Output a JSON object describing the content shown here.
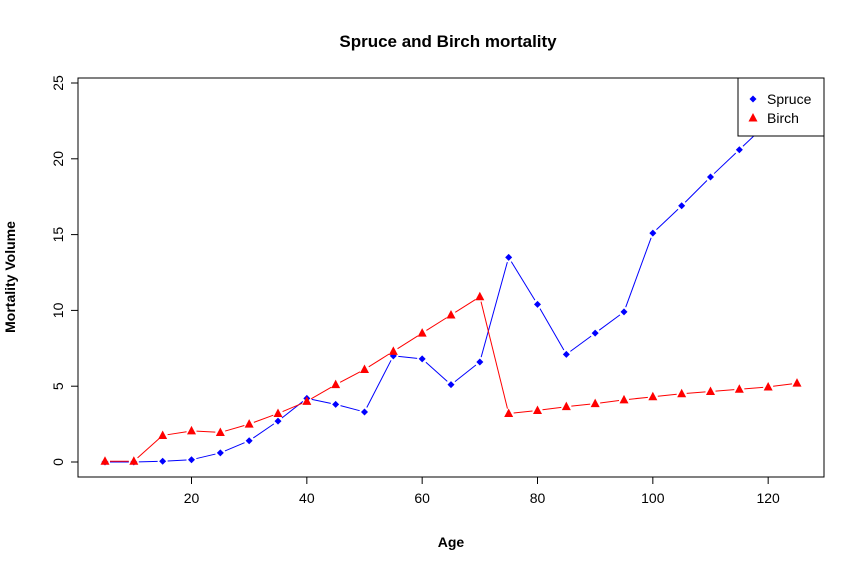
{
  "chart_data": {
    "type": "line",
    "title": "Spruce and Birch mortality",
    "xlabel": "Age",
    "ylabel": "Mortality Volume",
    "xlim": [
      5,
      125
    ],
    "ylim": [
      0,
      25
    ],
    "x_ticks": [
      20,
      40,
      60,
      80,
      100,
      120
    ],
    "y_ticks": [
      0,
      5,
      10,
      15,
      20,
      25
    ],
    "legend_position": "top-right",
    "x": [
      5,
      10,
      15,
      20,
      25,
      30,
      35,
      40,
      45,
      50,
      55,
      60,
      65,
      70,
      75,
      80,
      85,
      90,
      95,
      100,
      105,
      110,
      115,
      120,
      125
    ],
    "series": [
      {
        "name": "Spruce",
        "color": "#0000ff",
        "marker": "diamond",
        "values": [
          0,
          0,
          0.05,
          0.15,
          0.6,
          1.4,
          2.7,
          4.2,
          3.8,
          3.3,
          7.0,
          6.8,
          5.1,
          6.6,
          13.5,
          10.4,
          7.1,
          8.5,
          9.9,
          15.1,
          16.9,
          18.8,
          20.6,
          22.4,
          24.2
        ]
      },
      {
        "name": "Birch",
        "color": "#ff0000",
        "marker": "triangle",
        "values": [
          0.05,
          0.05,
          1.75,
          2.05,
          1.95,
          2.5,
          3.2,
          4.0,
          5.1,
          6.1,
          7.3,
          8.5,
          9.7,
          10.9,
          3.2,
          3.4,
          3.65,
          3.85,
          4.1,
          4.3,
          4.5,
          4.65,
          4.8,
          4.95,
          5.2
        ]
      }
    ]
  }
}
